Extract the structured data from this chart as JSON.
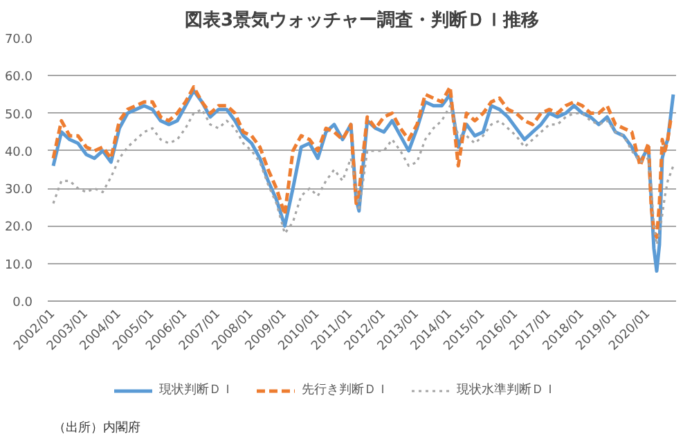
{
  "chart_data": {
    "type": "line",
    "title": "図表3景気ウォッチャー調査・判断ＤＩ推移",
    "x": [
      "2002-01",
      "2002-04",
      "2002-07",
      "2002-10",
      "2003-01",
      "2003-04",
      "2003-07",
      "2003-10",
      "2004-01",
      "2004-04",
      "2004-07",
      "2004-10",
      "2005-01",
      "2005-04",
      "2005-07",
      "2005-10",
      "2006-01",
      "2006-04",
      "2006-07",
      "2006-10",
      "2007-01",
      "2007-04",
      "2007-07",
      "2007-10",
      "2008-01",
      "2008-04",
      "2008-07",
      "2008-10",
      "2009-01",
      "2009-04",
      "2009-07",
      "2009-10",
      "2010-01",
      "2010-04",
      "2010-07",
      "2010-10",
      "2011-01",
      "2011-03",
      "2011-04",
      "2011-07",
      "2011-10",
      "2012-01",
      "2012-04",
      "2012-07",
      "2012-10",
      "2013-01",
      "2013-04",
      "2013-07",
      "2013-10",
      "2014-01",
      "2014-04",
      "2014-07",
      "2014-10",
      "2015-01",
      "2015-04",
      "2015-07",
      "2015-10",
      "2016-01",
      "2016-04",
      "2016-07",
      "2016-10",
      "2017-01",
      "2017-04",
      "2017-07",
      "2017-10",
      "2018-01",
      "2018-04",
      "2018-07",
      "2018-10",
      "2019-01",
      "2019-04",
      "2019-07",
      "2019-10",
      "2020-01",
      "2020-02",
      "2020-03",
      "2020-04",
      "2020-05",
      "2020-06",
      "2020-07",
      "2020-08",
      "2020-09",
      "2020-10"
    ],
    "series": [
      {
        "name": "現状判断ＤＩ",
        "color": "#5b9bd5",
        "line_style": "solid",
        "values": [
          36,
          45,
          43,
          42,
          39,
          38,
          40,
          37,
          46,
          50,
          51,
          52,
          51,
          48,
          47,
          48,
          52,
          56,
          53,
          49,
          51,
          51,
          48,
          44,
          42,
          38,
          32,
          27,
          20,
          30,
          41,
          42,
          38,
          45,
          47,
          43,
          47,
          27,
          24,
          48,
          46,
          45,
          48,
          44,
          40,
          46,
          53,
          52,
          52,
          55,
          41,
          47,
          44,
          45,
          52,
          51,
          49,
          46,
          43,
          45,
          47,
          50,
          49,
          50,
          52,
          50,
          49,
          47,
          49,
          45,
          44,
          41,
          37,
          41,
          27,
          14,
          8,
          15,
          38,
          41,
          43,
          49,
          55
        ]
      },
      {
        "name": "先行き判断ＤＩ",
        "color": "#ed7d31",
        "line_style": "dashed",
        "values": [
          38,
          48,
          44,
          44,
          41,
          40,
          41,
          38,
          48,
          51,
          52,
          53,
          53,
          49,
          48,
          50,
          53,
          57,
          53,
          50,
          52,
          52,
          50,
          45,
          44,
          41,
          35,
          30,
          23,
          40,
          44,
          43,
          40,
          46,
          45,
          43,
          47,
          26,
          29,
          49,
          46,
          49,
          50,
          46,
          43,
          47,
          55,
          54,
          53,
          57,
          36,
          50,
          48,
          50,
          53,
          54,
          51,
          50,
          48,
          47,
          50,
          51,
          50,
          52,
          53,
          52,
          50,
          50,
          52,
          47,
          46,
          45,
          36,
          42,
          25,
          19,
          17,
          26,
          43,
          40,
          43,
          48,
          49
        ]
      },
      {
        "name": "現状水準判断ＤＩ",
        "color": "#a5a5a5",
        "line_style": "dotted",
        "values": [
          26,
          32,
          32,
          30,
          29,
          30,
          29,
          33,
          38,
          41,
          43,
          45,
          46,
          43,
          42,
          43,
          46,
          50,
          51,
          47,
          46,
          48,
          46,
          42,
          40,
          37,
          31,
          26,
          18,
          21,
          28,
          30,
          28,
          32,
          35,
          32,
          38,
          30,
          24,
          40,
          40,
          40,
          43,
          40,
          36,
          37,
          43,
          46,
          48,
          52,
          44,
          44,
          42,
          44,
          47,
          48,
          46,
          44,
          41,
          43,
          45,
          47,
          47,
          49,
          50,
          50,
          48,
          47,
          48,
          45,
          44,
          40,
          37,
          38,
          30,
          20,
          15,
          18,
          23,
          28,
          32,
          34,
          36
        ]
      }
    ],
    "xlim": [
      "2001-11",
      "2020-11"
    ],
    "xticks": [
      {
        "value": "2002-01",
        "label": "2002/01"
      },
      {
        "value": "2003-01",
        "label": "2003/01"
      },
      {
        "value": "2004-01",
        "label": "2004/01"
      },
      {
        "value": "2005-01",
        "label": "2005/01"
      },
      {
        "value": "2006-01",
        "label": "2006/01"
      },
      {
        "value": "2007-01",
        "label": "2007/01"
      },
      {
        "value": "2008-01",
        "label": "2008/01"
      },
      {
        "value": "2009-01",
        "label": "2009/01"
      },
      {
        "value": "2010-01",
        "label": "2010/01"
      },
      {
        "value": "2011-01",
        "label": "2011/01"
      },
      {
        "value": "2012-01",
        "label": "2012/01"
      },
      {
        "value": "2013-01",
        "label": "2013/01"
      },
      {
        "value": "2014-01",
        "label": "2014/01"
      },
      {
        "value": "2015-01",
        "label": "2015/01"
      },
      {
        "value": "2016-01",
        "label": "2016/01"
      },
      {
        "value": "2017-01",
        "label": "2017/01"
      },
      {
        "value": "2018-01",
        "label": "2018/01"
      },
      {
        "value": "2019-01",
        "label": "2019/01"
      },
      {
        "value": "2020-01",
        "label": "2020/01"
      }
    ],
    "ylim": [
      0,
      70
    ],
    "yticks": [
      {
        "value": 0,
        "label": "0.0"
      },
      {
        "value": 10,
        "label": "10.0"
      },
      {
        "value": 20,
        "label": "20.0"
      },
      {
        "value": 30,
        "label": "30.0"
      },
      {
        "value": 40,
        "label": "40.0"
      },
      {
        "value": 50,
        "label": "50.0"
      },
      {
        "value": 60,
        "label": "60.0"
      },
      {
        "value": 70,
        "label": "70.0"
      }
    ],
    "grid": "y",
    "legend": "bottom",
    "marker": "none",
    "annotations": [
      "（出所）内閣府"
    ]
  }
}
